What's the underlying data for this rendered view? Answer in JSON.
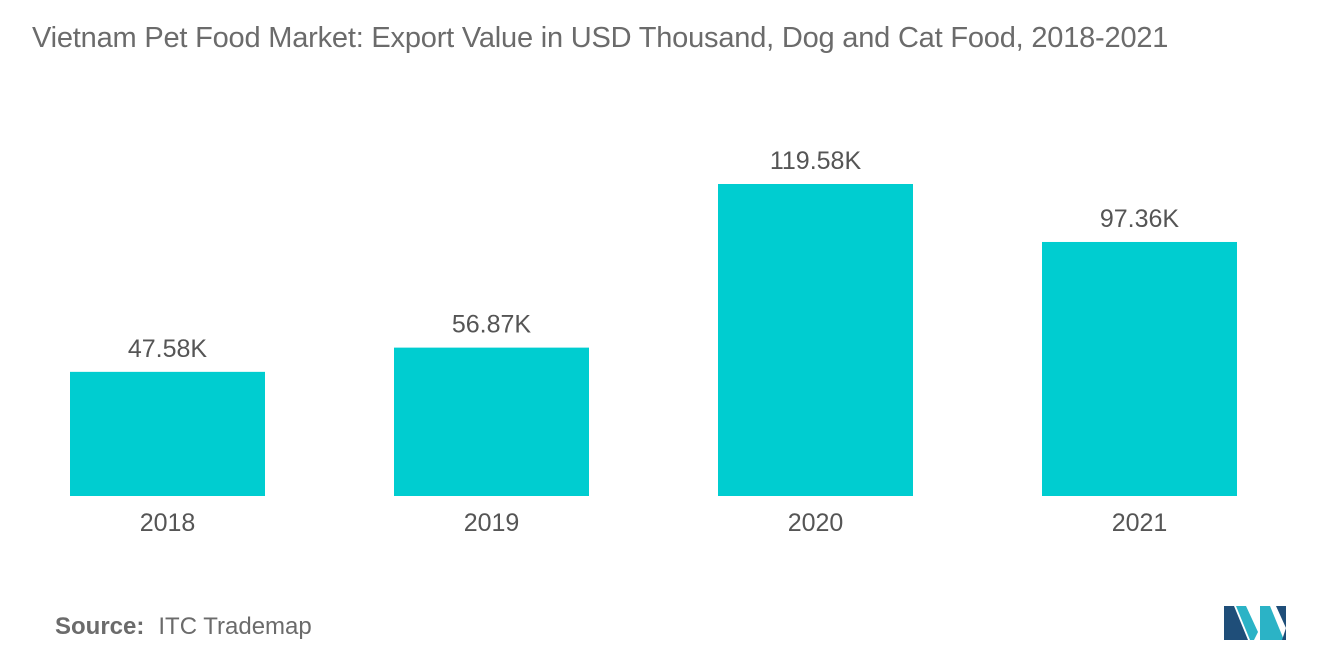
{
  "title": "Vietnam Pet Food Market:  Export Value in USD Thousand, Dog and Cat Food, 2018-2021",
  "source": {
    "label": "Source:",
    "text": "ITC Trademap"
  },
  "colors": {
    "bar": "#00cdd0",
    "text": "#555555",
    "logo_dark": "#1f4e79",
    "logo_light": "#2bb3c6"
  },
  "logo": {
    "icon": "mordor-intelligence-logo-icon"
  },
  "chart_data": {
    "type": "bar",
    "title": "Vietnam Pet Food Market:  Export Value in USD Thousand, Dog and Cat Food, 2018-2021",
    "categories": [
      "2018",
      "2019",
      "2020",
      "2021"
    ],
    "values": [
      47.58,
      56.87,
      119.58,
      97.36
    ],
    "data_labels": [
      "47.58K",
      "56.87K",
      "119.58K",
      "97.36K"
    ],
    "xlabel": "",
    "ylabel": "",
    "ylim": [
      0,
      120
    ],
    "grid": false,
    "legend": "none"
  }
}
